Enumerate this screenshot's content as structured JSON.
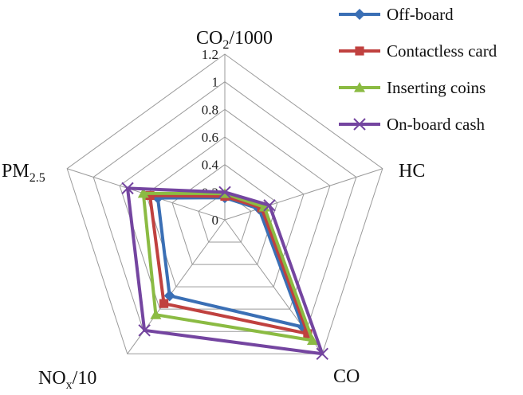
{
  "chart_data": {
    "type": "radar",
    "axes": [
      {
        "label": "CO",
        "sub": "2",
        "suffix": "/1000"
      },
      {
        "label": "HC",
        "sub": "",
        "suffix": ""
      },
      {
        "label": "CO",
        "sub": "",
        "suffix": ""
      },
      {
        "label": "NO",
        "sub": "x",
        "suffix": "/10"
      },
      {
        "label": "PM",
        "sub": "2.5",
        "suffix": ""
      }
    ],
    "range": [
      0,
      1.2
    ],
    "ticks": [
      "0",
      "0.2",
      "0.4",
      "0.6",
      "0.8",
      "1",
      "1.2"
    ],
    "grid": true,
    "legend_position": "top-right",
    "series": [
      {
        "name": "Off-board",
        "color": "#3a6fb5",
        "marker": "diamond",
        "values": [
          0.16,
          0.26,
          0.96,
          0.68,
          0.51
        ]
      },
      {
        "name": "Contactless card",
        "color": "#c0413f",
        "marker": "square",
        "values": [
          0.17,
          0.28,
          1.02,
          0.75,
          0.57
        ]
      },
      {
        "name": "Inserting coins",
        "color": "#8bbb43",
        "marker": "triangle",
        "values": [
          0.19,
          0.3,
          1.08,
          0.85,
          0.62
        ]
      },
      {
        "name": "On-board cash",
        "color": "#7445a0",
        "marker": "x",
        "values": [
          0.2,
          0.34,
          1.2,
          0.99,
          0.74
        ]
      }
    ]
  }
}
